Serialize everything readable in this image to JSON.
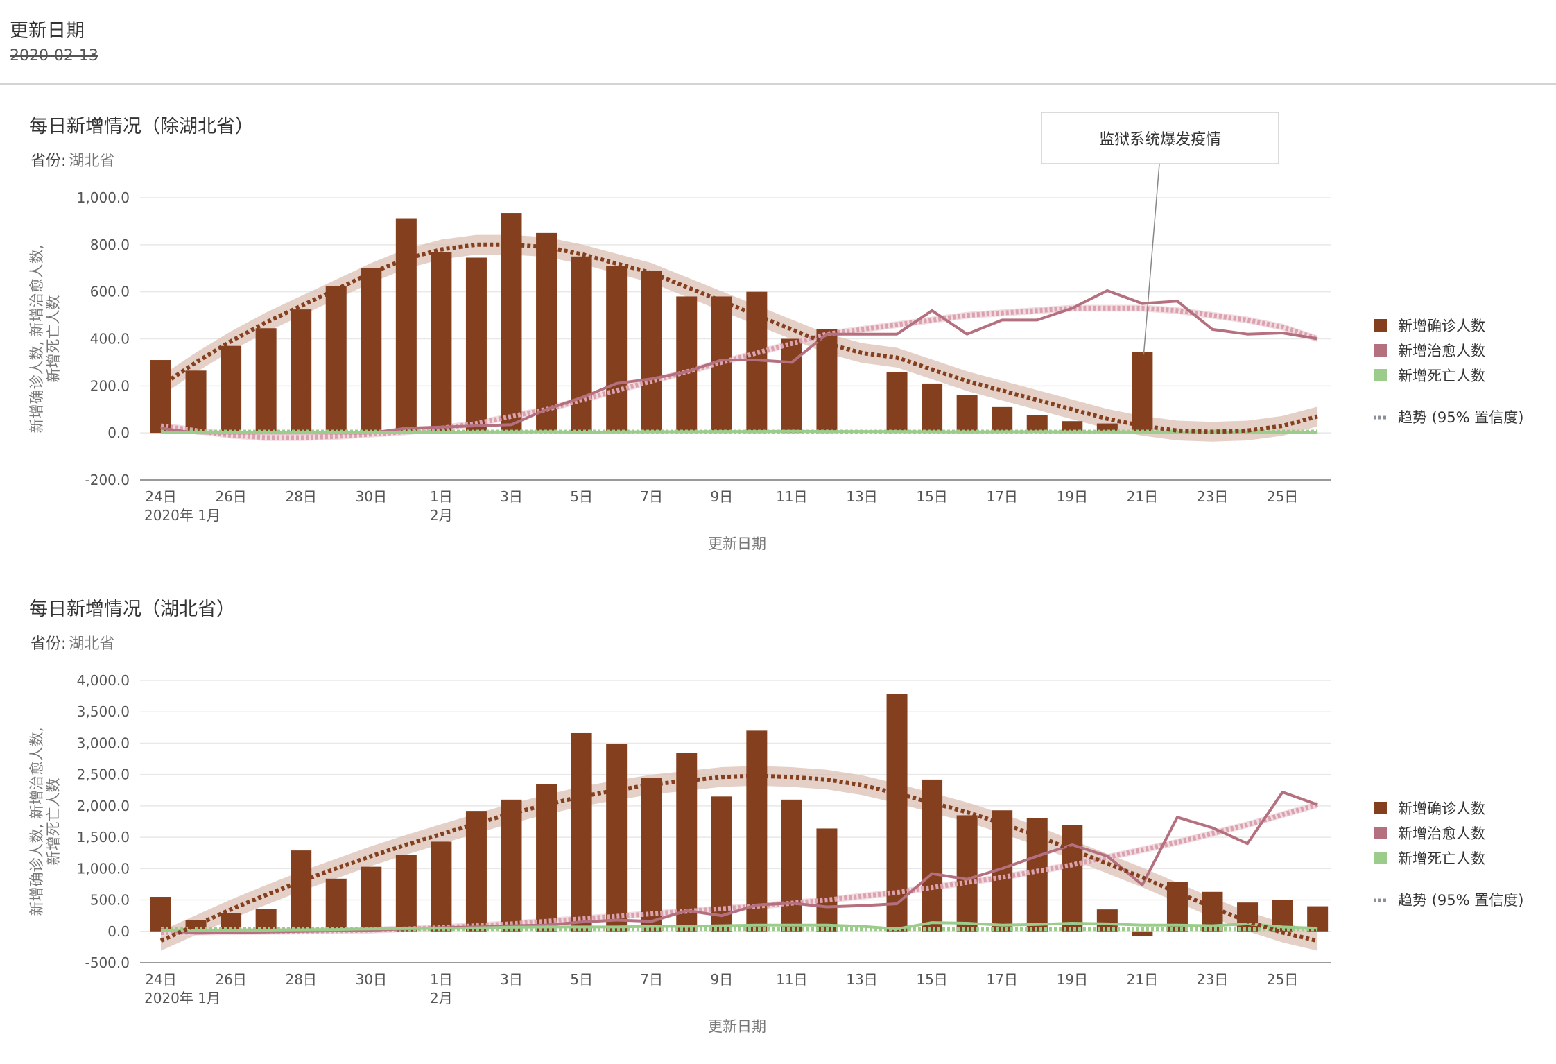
{
  "filter": {
    "title": "更新日期",
    "value": "2020-02-13"
  },
  "charts": [
    {
      "title": "每日新增情况（除湖北省）",
      "province_label": "省份:",
      "province_value": "湖北省",
      "xlabel": "更新日期",
      "ylabel_line1": "新增确诊人数, 新增治愈人数,",
      "ylabel_line2": "新增死亡人数",
      "annotation": "监狱系统爆发疫情"
    },
    {
      "title": "每日新增情况（湖北省）",
      "province_label": "省份:",
      "province_value": "湖北省",
      "xlabel": "更新日期",
      "ylabel_line1": "新增确诊人数, 新增治愈人数,",
      "ylabel_line2": "新增死亡人数"
    }
  ],
  "legend": {
    "confirmed": "新增确诊人数",
    "cured": "新增治愈人数",
    "deaths": "新增死亡人数",
    "trend": "趋势 (95% 置信度)"
  },
  "colors": {
    "confirmed": "#84401e",
    "cured": "#b5707f",
    "deaths": "#9ccc8c",
    "trend_band": "#dcc0b4",
    "cured_trend": "#dba1af",
    "deaths_trend": "#9ccc8c"
  },
  "chart_data": [
    {
      "type": "bar",
      "title": "每日新增情况（除湖北省）",
      "xlabel": "更新日期",
      "ylabel": "新增确诊人数, 新增治愈人数, 新增死亡人数",
      "x": [
        "2020-01-24",
        "2020-01-25",
        "2020-01-26",
        "2020-01-27",
        "2020-01-28",
        "2020-01-29",
        "2020-01-30",
        "2020-01-31",
        "2020-02-01",
        "2020-02-02",
        "2020-02-03",
        "2020-02-04",
        "2020-02-05",
        "2020-02-06",
        "2020-02-07",
        "2020-02-08",
        "2020-02-09",
        "2020-02-10",
        "2020-02-11",
        "2020-02-12",
        "2020-02-13",
        "2020-02-14",
        "2020-02-15",
        "2020-02-16",
        "2020-02-17",
        "2020-02-18",
        "2020-02-19",
        "2020-02-20",
        "2020-02-21",
        "2020-02-22",
        "2020-02-23",
        "2020-02-24",
        "2020-02-25",
        "2020-02-26"
      ],
      "x_tick_labels": [
        "24日",
        "26日",
        "28日",
        "30日",
        "1日",
        "3日",
        "5日",
        "7日",
        "9日",
        "11日",
        "13日",
        "15日",
        "17日",
        "19日",
        "21日",
        "23日",
        "25日"
      ],
      "x_tick_sublabels": [
        "2020年 1月",
        "2月"
      ],
      "ylim": [
        -200,
        1000
      ],
      "y_ticks": [
        "-200.0",
        "0.0",
        "200.0",
        "400.0",
        "600.0",
        "800.0",
        "1,000.0"
      ],
      "grid": true,
      "legend_position": "right",
      "series": [
        {
          "name": "新增确诊人数",
          "type": "bar",
          "values": [
            310,
            265,
            370,
            445,
            525,
            625,
            700,
            910,
            770,
            745,
            935,
            850,
            750,
            710,
            690,
            580,
            580,
            600,
            400,
            440,
            0,
            260,
            210,
            160,
            110,
            75,
            50,
            40,
            345,
            0,
            0,
            0,
            0,
            0
          ]
        },
        {
          "name": "新增治愈人数",
          "type": "line",
          "values": [
            20,
            0,
            0,
            0,
            0,
            0,
            0,
            20,
            25,
            30,
            35,
            100,
            150,
            210,
            230,
            260,
            310,
            310,
            300,
            420,
            420,
            420,
            520,
            420,
            480,
            480,
            530,
            605,
            550,
            560,
            440,
            420,
            425,
            400
          ]
        },
        {
          "name": "新增死亡人数",
          "type": "line",
          "values": [
            2,
            1,
            2,
            2,
            2,
            3,
            3,
            3,
            3,
            4,
            4,
            5,
            3,
            4,
            5,
            5,
            6,
            6,
            7,
            6,
            6,
            6,
            5,
            4,
            5,
            5,
            4,
            4,
            3,
            3,
            2,
            3,
            2,
            2
          ]
        }
      ],
      "trend": {
        "name": "趋势 (95% 置信度)",
        "confirmed": [
          200,
          300,
          390,
          470,
          540,
          610,
          680,
          740,
          780,
          800,
          800,
          790,
          760,
          720,
          680,
          620,
          560,
          500,
          440,
          380,
          340,
          320,
          270,
          220,
          180,
          140,
          100,
          60,
          30,
          10,
          5,
          10,
          30,
          70
        ],
        "cured": [
          30,
          10,
          -10,
          -20,
          -20,
          -15,
          -5,
          5,
          20,
          40,
          70,
          100,
          140,
          180,
          220,
          260,
          300,
          340,
          380,
          420,
          440,
          460,
          480,
          500,
          510,
          520,
          530,
          530,
          530,
          520,
          500,
          480,
          450,
          400
        ],
        "deaths": [
          5,
          5,
          5,
          5,
          5,
          5,
          5,
          5,
          5,
          5,
          5,
          5,
          5,
          5,
          5,
          5,
          5,
          5,
          5,
          5,
          5,
          5,
          5,
          5,
          5,
          5,
          5,
          5,
          5,
          5,
          5,
          5,
          5,
          5
        ]
      },
      "annotation": {
        "text": "监狱系统爆发疫情",
        "date": "2020-02-21"
      }
    },
    {
      "type": "bar",
      "title": "每日新增情况（湖北省）",
      "xlabel": "更新日期",
      "ylabel": "新增确诊人数, 新增治愈人数, 新增死亡人数",
      "x": [
        "2020-01-24",
        "2020-01-25",
        "2020-01-26",
        "2020-01-27",
        "2020-01-28",
        "2020-01-29",
        "2020-01-30",
        "2020-01-31",
        "2020-02-01",
        "2020-02-02",
        "2020-02-03",
        "2020-02-04",
        "2020-02-05",
        "2020-02-06",
        "2020-02-07",
        "2020-02-08",
        "2020-02-09",
        "2020-02-10",
        "2020-02-11",
        "2020-02-12",
        "2020-02-13",
        "2020-02-14",
        "2020-02-15",
        "2020-02-16",
        "2020-02-17",
        "2020-02-18",
        "2020-02-19",
        "2020-02-20",
        "2020-02-21",
        "2020-02-22",
        "2020-02-23",
        "2020-02-24",
        "2020-02-25",
        "2020-02-26"
      ],
      "x_tick_labels": [
        "24日",
        "26日",
        "28日",
        "30日",
        "1日",
        "3日",
        "5日",
        "7日",
        "9日",
        "11日",
        "13日",
        "15日",
        "17日",
        "19日",
        "21日",
        "23日",
        "25日"
      ],
      "x_tick_sublabels": [
        "2020年 1月",
        "2月"
      ],
      "ylim": [
        -500,
        4000
      ],
      "y_ticks": [
        "-500.0",
        "0.0",
        "500.0",
        "1,000.0",
        "1,500.0",
        "2,000.0",
        "2,500.0",
        "3,000.0",
        "3,500.0",
        "4,000.0"
      ],
      "grid": true,
      "legend_position": "right",
      "series": [
        {
          "name": "新增确诊人数",
          "type": "bar",
          "values": [
            550,
            180,
            290,
            360,
            1290,
            840,
            1030,
            1220,
            1430,
            1920,
            2100,
            2350,
            3160,
            2990,
            2450,
            2840,
            2150,
            3200,
            2100,
            1640,
            0,
            3780,
            2420,
            1850,
            1930,
            1810,
            1690,
            350,
            -80,
            790,
            630,
            460,
            500,
            400
          ]
        },
        {
          "name": "新增治愈人数",
          "type": "line",
          "values": [
            30,
            -30,
            -20,
            -10,
            0,
            10,
            20,
            40,
            60,
            70,
            90,
            100,
            150,
            180,
            160,
            330,
            250,
            420,
            450,
            390,
            410,
            440,
            920,
            830,
            1000,
            1200,
            1380,
            1200,
            740,
            1820,
            1650,
            1400,
            2220,
            2020
          ]
        },
        {
          "name": "新增死亡人数",
          "type": "line",
          "values": [
            20,
            20,
            20,
            20,
            25,
            30,
            40,
            45,
            50,
            55,
            65,
            70,
            70,
            70,
            80,
            80,
            90,
            100,
            100,
            100,
            80,
            40,
            140,
            130,
            100,
            110,
            130,
            120,
            100,
            100,
            90,
            120,
            70,
            50
          ]
        }
      ],
      "trend": {
        "name": "趋势 (95% 置信度)",
        "confirmed": [
          -150,
          100,
          350,
          580,
          800,
          1000,
          1200,
          1380,
          1550,
          1720,
          1880,
          2020,
          2150,
          2250,
          2340,
          2400,
          2460,
          2480,
          2460,
          2420,
          2330,
          2200,
          2050,
          1900,
          1720,
          1520,
          1300,
          1080,
          860,
          620,
          380,
          160,
          -20,
          -150
        ],
        "cured": [
          -20,
          -10,
          -5,
          0,
          5,
          10,
          20,
          40,
          60,
          90,
          120,
          160,
          200,
          240,
          280,
          320,
          360,
          400,
          450,
          500,
          560,
          620,
          700,
          780,
          860,
          960,
          1060,
          1180,
          1300,
          1420,
          1560,
          1700,
          1860,
          2020
        ],
        "deaths": [
          40,
          40,
          40,
          40,
          40,
          40,
          40,
          40,
          40,
          40,
          40,
          40,
          40,
          40,
          40,
          40,
          40,
          40,
          40,
          40,
          40,
          40,
          40,
          40,
          40,
          40,
          40,
          40,
          40,
          40,
          40,
          40,
          40,
          40
        ]
      }
    }
  ]
}
